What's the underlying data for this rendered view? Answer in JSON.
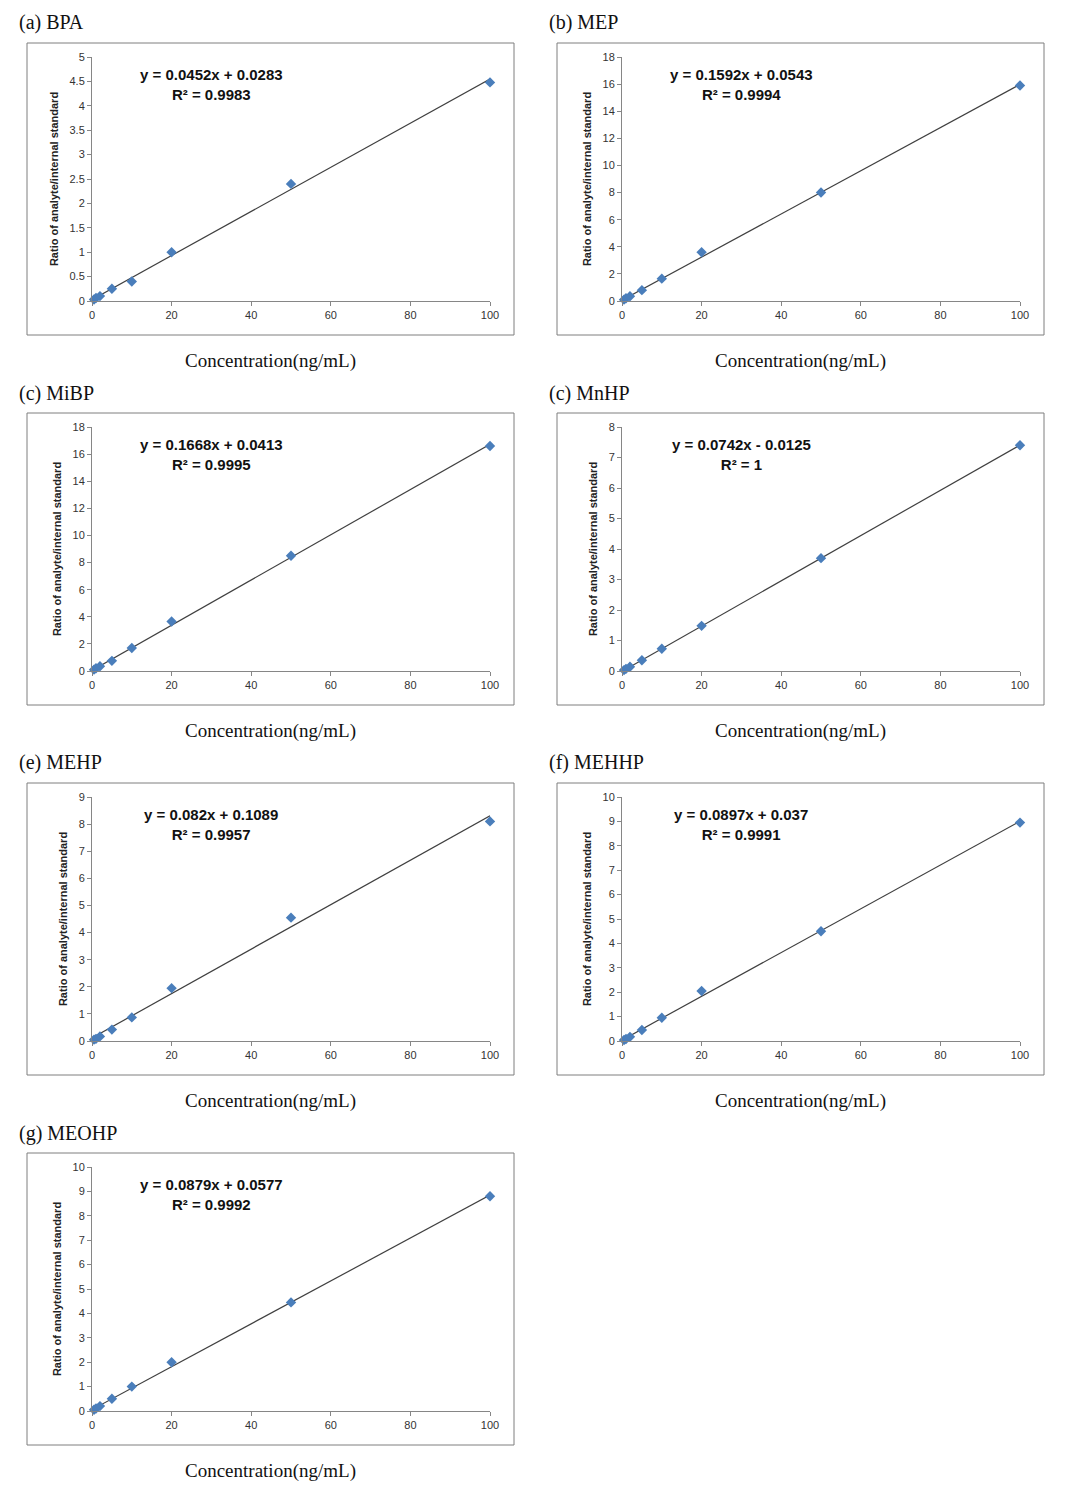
{
  "chart_data": [
    {
      "type": "scatter",
      "title": "(a) BPA",
      "x_label": "Concentration(ng/mL)",
      "y_label": "Ratio of analyte/internal standard",
      "x": [
        0.5,
        1,
        2,
        5,
        10,
        20,
        50,
        100
      ],
      "values": [
        0.03,
        0.06,
        0.1,
        0.25,
        0.4,
        1.0,
        2.4,
        4.48
      ],
      "fit": {
        "slope": 0.0452,
        "intercept": 0.0283
      },
      "annotations": [
        "y = 0.0452x + 0.0283",
        "R² = 0.9983"
      ],
      "color": "#4a7ebb",
      "marker": "diamond",
      "grid": false,
      "xlim": [
        0,
        100
      ],
      "xticks": [
        0,
        20,
        40,
        60,
        80,
        100
      ],
      "ylim": [
        0,
        5
      ],
      "yticks": [
        0,
        0.5,
        1,
        1.5,
        2,
        2.5,
        3,
        3.5,
        4,
        4.5,
        5
      ]
    },
    {
      "type": "scatter",
      "title": "(b) MEP",
      "x_label": "Concentration(ng/mL)",
      "y_label": "Ratio of analyte/internal standard",
      "x": [
        0.5,
        1,
        2,
        5,
        10,
        20,
        50,
        100
      ],
      "values": [
        0.1,
        0.2,
        0.35,
        0.8,
        1.65,
        3.6,
        8.0,
        15.9
      ],
      "fit": {
        "slope": 0.1592,
        "intercept": 0.0543
      },
      "annotations": [
        "y = 0.1592x + 0.0543",
        "R² = 0.9994"
      ],
      "color": "#4a7ebb",
      "marker": "diamond",
      "grid": false,
      "xlim": [
        0,
        100
      ],
      "xticks": [
        0,
        20,
        40,
        60,
        80,
        100
      ],
      "ylim": [
        0,
        18
      ],
      "yticks": [
        0,
        2,
        4,
        6,
        8,
        10,
        12,
        14,
        16,
        18
      ]
    },
    {
      "type": "scatter",
      "title": "(c) MiBP",
      "x_label": "Concentration(ng/mL)",
      "y_label": "Ratio of analyte/internal standard",
      "x": [
        0.5,
        1,
        2,
        5,
        10,
        20,
        50,
        100
      ],
      "values": [
        0.1,
        0.2,
        0.35,
        0.75,
        1.7,
        3.65,
        8.5,
        16.6
      ],
      "fit": {
        "slope": 0.1668,
        "intercept": 0.0413
      },
      "annotations": [
        "y = 0.1668x + 0.0413",
        "R² = 0.9995"
      ],
      "color": "#4a7ebb",
      "marker": "diamond",
      "grid": false,
      "xlim": [
        0,
        100
      ],
      "xticks": [
        0,
        20,
        40,
        60,
        80,
        100
      ],
      "ylim": [
        0,
        18
      ],
      "yticks": [
        0,
        2,
        4,
        6,
        8,
        10,
        12,
        14,
        16,
        18
      ]
    },
    {
      "type": "scatter",
      "title": "(c) MnHP",
      "x_label": "Concentration(ng/mL)",
      "y_label": "Ratio of analyte/internal standard",
      "x": [
        0.5,
        1,
        2,
        5,
        10,
        20,
        50,
        100
      ],
      "values": [
        0.03,
        0.07,
        0.14,
        0.35,
        0.73,
        1.48,
        3.7,
        7.4
      ],
      "fit": {
        "slope": 0.0742,
        "intercept": -0.0125
      },
      "annotations": [
        "y = 0.0742x - 0.0125",
        "R² = 1"
      ],
      "color": "#4a7ebb",
      "marker": "diamond",
      "grid": false,
      "xlim": [
        0,
        100
      ],
      "xticks": [
        0,
        20,
        40,
        60,
        80,
        100
      ],
      "ylim": [
        0,
        8
      ],
      "yticks": [
        0,
        1,
        2,
        3,
        4,
        5,
        6,
        7,
        8
      ]
    },
    {
      "type": "scatter",
      "title": "(e) MEHP",
      "x_label": "Concentration(ng/mL)",
      "y_label": "Ratio of analyte/internal standard",
      "x": [
        0.5,
        1,
        2,
        5,
        10,
        20,
        50,
        100
      ],
      "values": [
        0.05,
        0.08,
        0.17,
        0.42,
        0.87,
        1.95,
        4.55,
        8.1
      ],
      "fit": {
        "slope": 0.082,
        "intercept": 0.1089
      },
      "annotations": [
        "y = 0.082x + 0.1089",
        "R² = 0.9957"
      ],
      "color": "#4a7ebb",
      "marker": "diamond",
      "grid": false,
      "xlim": [
        0,
        100
      ],
      "xticks": [
        0,
        20,
        40,
        60,
        80,
        100
      ],
      "ylim": [
        0,
        9
      ],
      "yticks": [
        0,
        1,
        2,
        3,
        4,
        5,
        6,
        7,
        8,
        9
      ]
    },
    {
      "type": "scatter",
      "title": "(f) MEHHP",
      "x_label": "Concentration(ng/mL)",
      "y_label": "Ratio of analyte/internal standard",
      "x": [
        0.5,
        1,
        2,
        5,
        10,
        20,
        50,
        100
      ],
      "values": [
        0.04,
        0.08,
        0.17,
        0.45,
        0.95,
        2.05,
        4.5,
        8.95
      ],
      "fit": {
        "slope": 0.0897,
        "intercept": 0.037
      },
      "annotations": [
        "y = 0.0897x + 0.037",
        "R² = 0.9991"
      ],
      "color": "#4a7ebb",
      "marker": "diamond",
      "grid": false,
      "xlim": [
        0,
        100
      ],
      "xticks": [
        0,
        20,
        40,
        60,
        80,
        100
      ],
      "ylim": [
        0,
        10
      ],
      "yticks": [
        0,
        1,
        2,
        3,
        4,
        5,
        6,
        7,
        8,
        9,
        10
      ]
    },
    {
      "type": "scatter",
      "title": "(g) MEOHP",
      "x_label": "Concentration(ng/mL)",
      "y_label": "Ratio of analyte/internal standard",
      "x": [
        0.5,
        1,
        2,
        5,
        10,
        20,
        50,
        100
      ],
      "values": [
        0.05,
        0.1,
        0.2,
        0.5,
        1.0,
        2.0,
        4.45,
        8.8
      ],
      "fit": {
        "slope": 0.0879,
        "intercept": 0.0577
      },
      "annotations": [
        "y = 0.0879x + 0.0577",
        "R² = 0.9992"
      ],
      "color": "#4a7ebb",
      "marker": "diamond",
      "grid": false,
      "xlim": [
        0,
        100
      ],
      "xticks": [
        0,
        20,
        40,
        60,
        80,
        100
      ],
      "ylim": [
        0,
        10
      ],
      "yticks": [
        0,
        1,
        2,
        3,
        4,
        5,
        6,
        7,
        8,
        9,
        10
      ]
    }
  ]
}
